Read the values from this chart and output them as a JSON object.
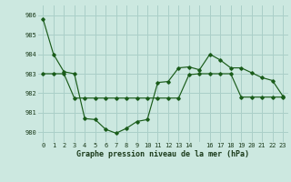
{
  "title": "Graphe pression niveau de la mer (hPa)",
  "background_color": "#cce8e0",
  "grid_color": "#aacfc8",
  "line_color": "#1a5c1a",
  "x_labels": [
    "0",
    "1",
    "2",
    "3",
    "4",
    "5",
    "6",
    "7",
    "8",
    "9",
    "10",
    "11",
    "12",
    "13",
    "14",
    "",
    "16",
    "17",
    "18",
    "19",
    "20",
    "21",
    "22",
    "23"
  ],
  "ylim": [
    979.5,
    986.5
  ],
  "yticks": [
    980,
    981,
    982,
    983,
    984,
    985,
    986
  ],
  "series1_x": [
    0,
    1,
    2,
    3,
    4,
    5,
    6,
    7,
    8,
    9,
    10,
    11,
    12,
    13,
    14,
    15,
    16,
    17,
    18,
    19,
    20,
    21,
    22,
    23
  ],
  "series1_y": [
    985.8,
    984.0,
    983.1,
    983.0,
    980.7,
    980.65,
    980.15,
    979.95,
    980.2,
    980.55,
    980.65,
    982.55,
    982.6,
    983.3,
    983.35,
    983.2,
    984.0,
    983.7,
    983.3,
    983.3,
    983.05,
    982.8,
    982.65,
    981.85
  ],
  "series2_x": [
    0,
    1,
    2,
    3,
    4,
    5,
    6,
    7,
    8,
    9,
    10,
    11,
    12,
    13,
    14,
    15,
    16,
    17,
    18,
    19,
    20,
    21,
    22,
    23
  ],
  "series2_y": [
    983.0,
    983.0,
    983.0,
    981.75,
    981.75,
    981.75,
    981.75,
    981.75,
    981.75,
    981.75,
    981.75,
    981.75,
    981.75,
    981.75,
    982.95,
    983.0,
    983.0,
    983.0,
    983.0,
    981.8,
    981.8,
    981.8,
    981.8,
    981.8
  ]
}
